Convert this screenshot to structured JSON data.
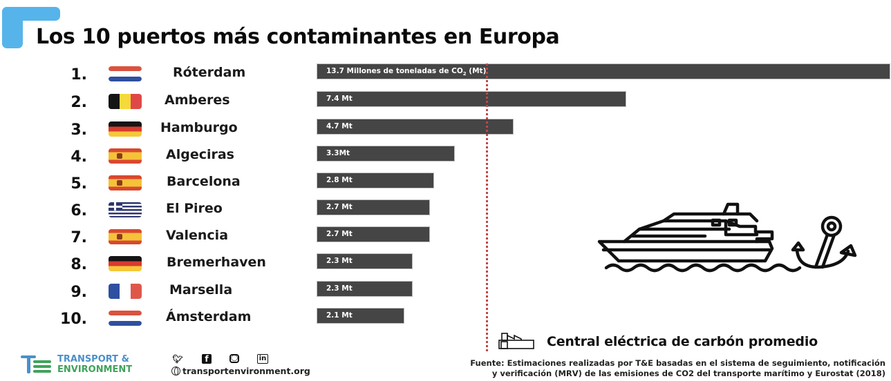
{
  "header": {
    "title": "Los 10 puertos más contaminantes en Europa",
    "accent_color": "#56b4ea"
  },
  "rows": [
    {
      "rank": "1.",
      "city": "Róterdam",
      "flag": "netherlands",
      "label_main": "13.7 Millones de toneladas de CO",
      "label_sub": "2",
      "label_tail": " (Mt)",
      "value": 13.7
    },
    {
      "rank": "2.",
      "city": "Amberes",
      "flag": "belgium",
      "label": "7.4 Mt",
      "value": 7.4
    },
    {
      "rank": "3.",
      "city": "Hamburgo",
      "flag": "germany",
      "label": "4.7 Mt",
      "value": 4.7
    },
    {
      "rank": "4.",
      "city": "Algeciras",
      "flag": "spain",
      "label": "3.3Mt",
      "value": 3.3
    },
    {
      "rank": "5.",
      "city": "Barcelona",
      "flag": "spain",
      "label": "2.8 Mt",
      "value": 2.8
    },
    {
      "rank": "6.",
      "city": "El Pireo",
      "flag": "greece",
      "label": "2.7 Mt",
      "value": 2.7
    },
    {
      "rank": "7.",
      "city": "Valencia",
      "flag": "spain",
      "label": "2.7 Mt",
      "value": 2.7
    },
    {
      "rank": "8.",
      "city": "Bremerhaven",
      "flag": "germany",
      "label": "2.3 Mt",
      "value": 2.3
    },
    {
      "rank": "9.",
      "city": "Marsella",
      "flag": "france",
      "label": "2.3 Mt",
      "value": 2.3
    },
    {
      "rank": "10.",
      "city": "Ámsterdam",
      "flag": "netherlands",
      "label": "2.1 Mt",
      "value": 2.1
    }
  ],
  "reference": {
    "label": "Central eléctrica de carbón promedio",
    "icon": "factory-icon",
    "line_color": "#c0464a"
  },
  "illustration": {
    "icons": [
      "ship-icon",
      "anchor-icon"
    ]
  },
  "footer": {
    "brand_line1": "TRANSPORT &",
    "brand_line2": "ENVIRONMENT",
    "brand_colors": {
      "blue": "#4a90c8",
      "green": "#3fa35a"
    },
    "social_icons": [
      "twitter-icon",
      "facebook-icon",
      "instagram-icon",
      "linkedin-icon"
    ],
    "website": "transportenvironment.org",
    "source_line1": "Fuente: Estimaciones realizadas por T&E basadas en el sistema de seguimiento, notificación",
    "source_line2": "y verificación (MRV) de las emisiones de CO2 del transporte marítimo y Eurostat (2018)"
  },
  "chart_data": {
    "type": "bar",
    "orientation": "horizontal",
    "title": "Los 10 puertos más contaminantes en Europa",
    "categories": [
      "Róterdam",
      "Amberes",
      "Hamburgo",
      "Algeciras",
      "Barcelona",
      "El Pireo",
      "Valencia",
      "Bremerhaven",
      "Marsella",
      "Ámsterdam"
    ],
    "values": [
      13.7,
      7.4,
      4.7,
      3.3,
      2.8,
      2.7,
      2.7,
      2.3,
      2.3,
      2.1
    ],
    "unit": "Millones de toneladas de CO2 (Mt)",
    "xlabel": "",
    "ylabel": "",
    "bar_color": "#454545",
    "reference_line": {
      "label": "Central eléctrica de carbón promedio",
      "approx_value": 4.0,
      "style": "dotted",
      "color": "#c0464a"
    },
    "grid": false,
    "legend": {
      "position": "bottom-right",
      "entries": [
        "Central eléctrica de carbón promedio"
      ]
    }
  }
}
